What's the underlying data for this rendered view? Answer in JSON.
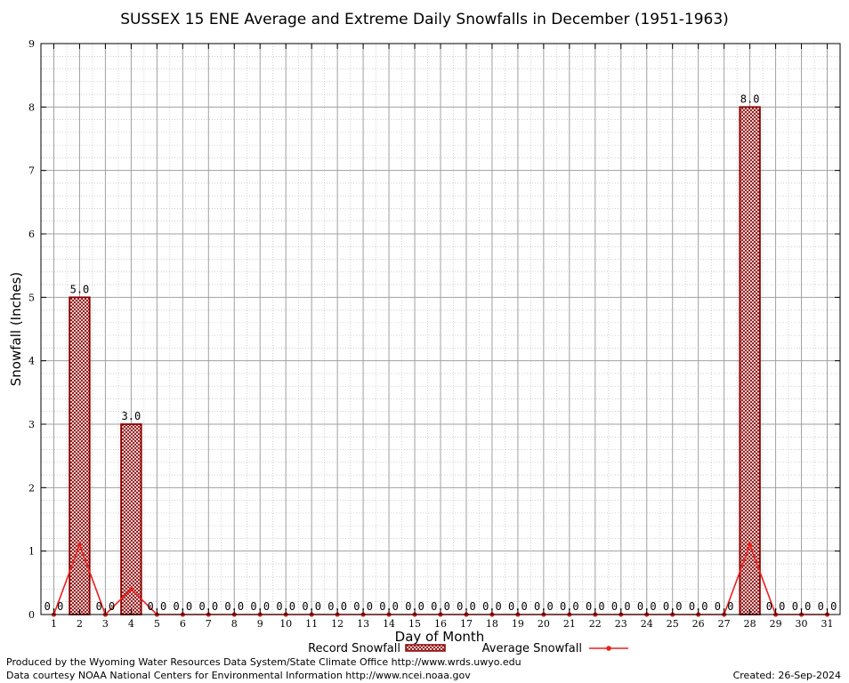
{
  "chart_data": {
    "type": "bar",
    "title": "SUSSEX 15 ENE Average and Extreme Daily Snowfalls in December (1951-1963)",
    "xlabel": "Day of Month",
    "ylabel": "Snowfall (Inches)",
    "ylim": [
      0,
      9
    ],
    "yticks": [
      "0",
      "1",
      "2",
      "3",
      "4",
      "5",
      "6",
      "7",
      "8",
      "9"
    ],
    "categories": [
      "1",
      "2",
      "3",
      "4",
      "5",
      "6",
      "7",
      "8",
      "9",
      "10",
      "11",
      "12",
      "13",
      "14",
      "15",
      "16",
      "17",
      "18",
      "19",
      "20",
      "21",
      "22",
      "23",
      "24",
      "25",
      "26",
      "27",
      "28",
      "29",
      "30",
      "31"
    ],
    "series": [
      {
        "name": "Record Snowfall",
        "kind": "bar",
        "values": [
          0,
          5,
          0,
          3,
          0,
          0,
          0,
          0,
          0,
          0,
          0,
          0,
          0,
          0,
          0,
          0,
          0,
          0,
          0,
          0,
          0,
          0,
          0,
          0,
          0,
          0,
          0,
          8,
          0,
          0,
          0
        ],
        "labels": [
          "0.0",
          "5.0",
          "0.0",
          "3.0",
          "0.0",
          "0.0",
          "0.0",
          "0.0",
          "0.0",
          "0.0",
          "0.0",
          "0.0",
          "0.0",
          "0.0",
          "0.0",
          "0.0",
          "0.0",
          "0.0",
          "0.0",
          "0.0",
          "0.0",
          "0.0",
          "0.0",
          "0.0",
          "0.0",
          "0.0",
          "0.0",
          "8.0",
          "0.0",
          "0.0",
          "0.0"
        ]
      },
      {
        "name": "Average Snowfall",
        "kind": "line",
        "values": [
          0,
          1.1,
          0,
          0.4,
          0,
          0,
          0,
          0,
          0,
          0,
          0,
          0,
          0,
          0,
          0,
          0,
          0,
          0,
          0,
          0,
          0,
          0,
          0,
          0,
          0,
          0,
          0,
          1.1,
          0,
          0,
          0
        ]
      }
    ],
    "grid": true,
    "legend": "bottom"
  },
  "colors": {
    "bar_edge": "#8b0000",
    "bar_fill": "#c8a0a0",
    "line": "#e8201e",
    "grid": "#a0a0a0"
  },
  "footer": {
    "produced_by": "Produced by the Wyoming Water Resources Data System/State Climate Office http://www.wrds.uwyo.edu",
    "data_courtesy": "Data courtesy NOAA National Centers for Environmental Information http://www.ncei.noaa.gov",
    "created": "Created: 26-Sep-2024"
  }
}
